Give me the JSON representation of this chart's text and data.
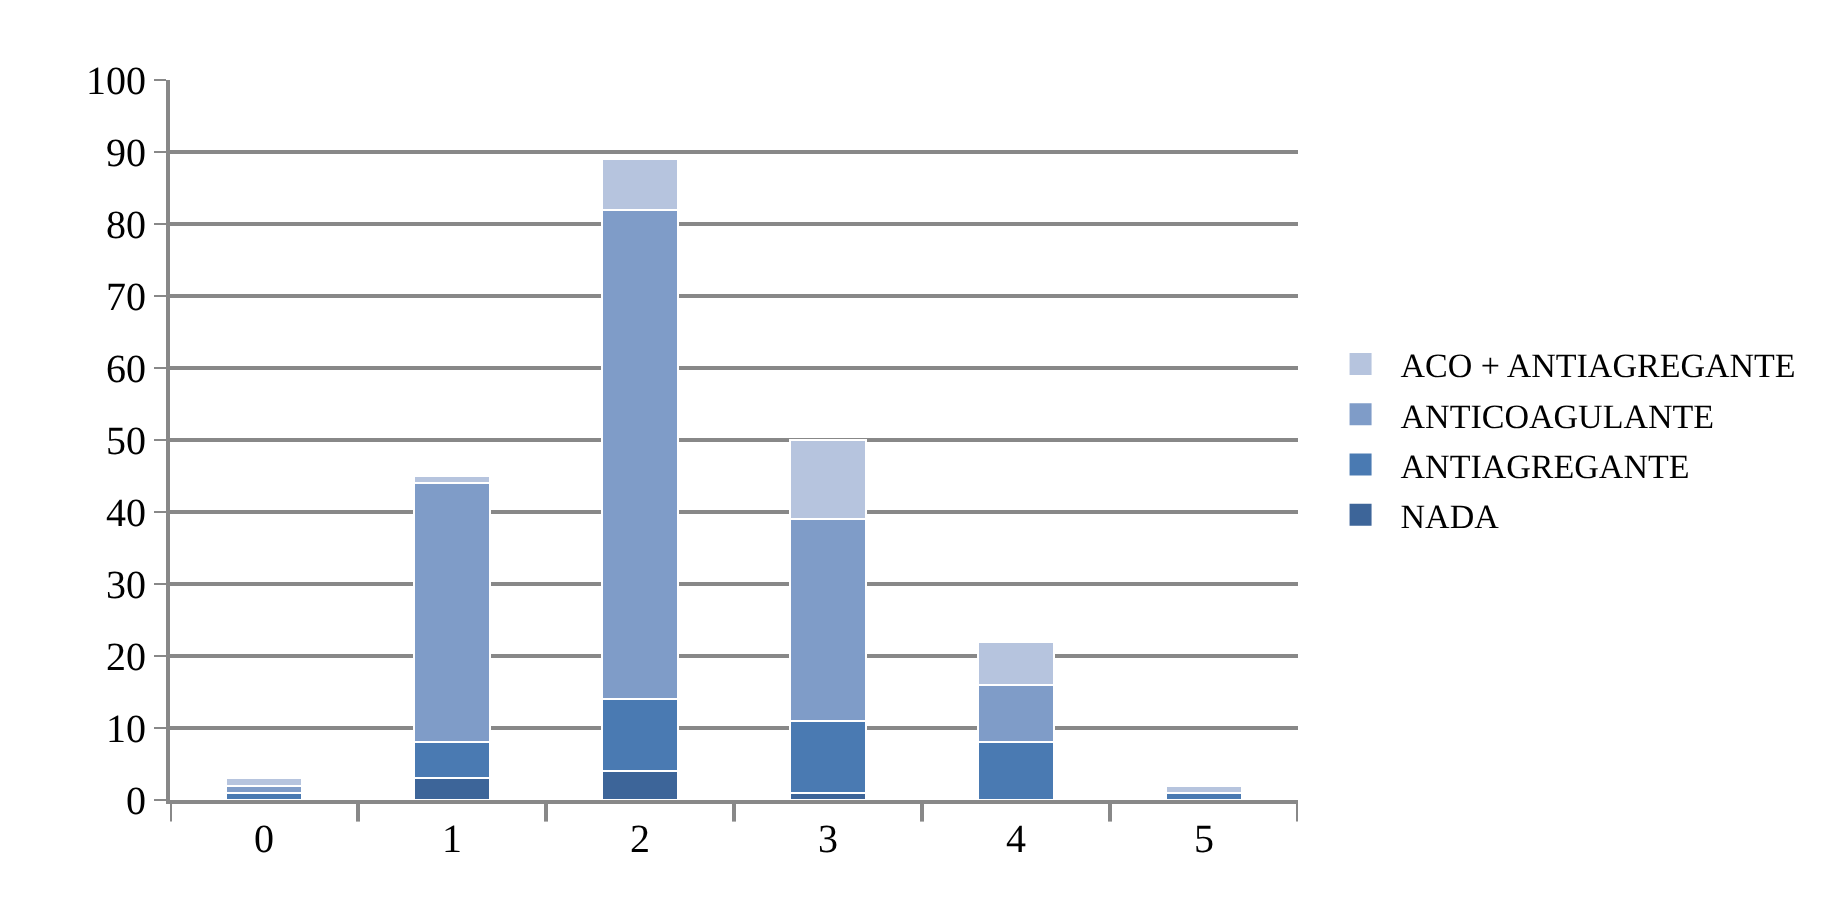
{
  "chart_data": {
    "type": "bar",
    "stacked": true,
    "categories": [
      "0",
      "1",
      "2",
      "3",
      "4",
      "5"
    ],
    "series": [
      {
        "name": "NADA",
        "color": "#3d6599",
        "values": [
          0,
          3,
          4,
          1,
          0,
          0
        ]
      },
      {
        "name": "ANTIAGREGANTE",
        "color": "#4a7ab2",
        "values": [
          1,
          5,
          10,
          10,
          8,
          1
        ]
      },
      {
        "name": "ANTICOAGULANTE",
        "color": "#7f9cc8",
        "values": [
          1,
          36,
          68,
          28,
          8,
          0
        ]
      },
      {
        "name": "ACO + ANTIAGREGANTE",
        "color": "#b6c4de",
        "values": [
          1,
          1,
          7,
          11,
          6,
          1
        ]
      }
    ],
    "ylim": [
      0,
      100
    ],
    "yticks": [
      0,
      10,
      20,
      30,
      40,
      50,
      60,
      70,
      80,
      90,
      100
    ],
    "grid": "y",
    "legend": "right"
  }
}
